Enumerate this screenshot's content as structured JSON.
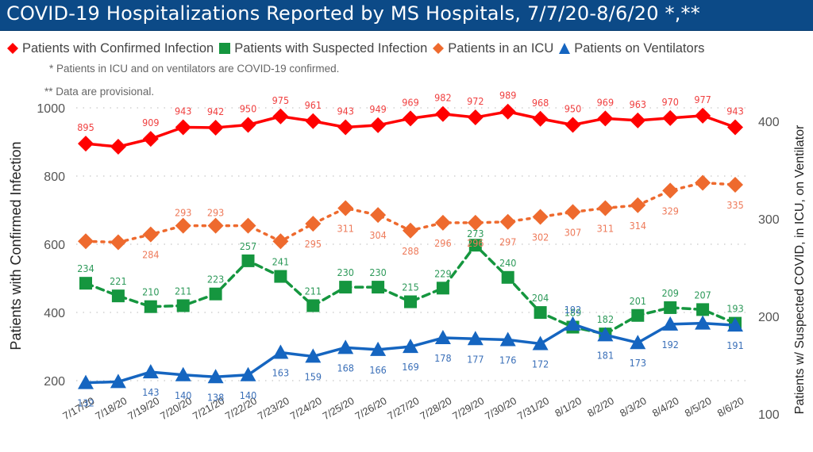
{
  "header": {
    "title": "COVID-19 Hospitalizations Reported by MS Hospitals, 7/7/20-8/6/20 *,**"
  },
  "legend": [
    {
      "label": "Patients with Confirmed Infection",
      "marker": "diamond",
      "color": "#ff0000"
    },
    {
      "label": "Patients with Suspected Infection",
      "marker": "square",
      "color": "#15963f"
    },
    {
      "label": "Patients in an ICU",
      "marker": "diamond",
      "color": "#ee6a2e"
    },
    {
      "label": "Patients on Ventilators",
      "marker": "triangle",
      "color": "#1565c0"
    }
  ],
  "notes": {
    "note1": "* Patients in ICU and on ventilators are COVID-19 confirmed.",
    "note2": "** Data are provisional."
  },
  "chart_data": {
    "type": "line",
    "title": "COVID-19 Hospitalizations Reported by MS Hospitals, 7/7/20-8/6/20 *,**",
    "xlabel": "",
    "ylabel": "Patients with Confirmed Infection",
    "y2label": "Patients w/ Suspected COVID, in ICU, on Ventilator",
    "ylim": [
      150,
      1000
    ],
    "y2lim": [
      100,
      420
    ],
    "yticks": [
      200,
      400,
      600,
      800,
      1000
    ],
    "y2ticks": [
      100,
      200,
      300,
      400
    ],
    "grid": true,
    "legend_position": "top",
    "categories": [
      "7/17/20",
      "7/18/20",
      "7/19/20",
      "7/20/20",
      "7/21/20",
      "7/22/20",
      "7/23/20",
      "7/24/20",
      "7/25/20",
      "7/26/20",
      "7/27/20",
      "7/28/20",
      "7/29/20",
      "7/30/20",
      "7/31/20",
      "8/1/20",
      "8/2/20",
      "8/3/20",
      "8/4/20",
      "8/5/20",
      "8/6/20"
    ],
    "series": [
      {
        "name": "Patients with Confirmed Infection",
        "axis": "left",
        "color": "#ff0000",
        "label_color": "#f04040",
        "marker": "diamond",
        "line": "solid",
        "values": [
          895,
          886,
          909,
          943,
          942,
          950,
          975,
          961,
          943,
          949,
          969,
          982,
          972,
          989,
          968,
          950,
          969,
          963,
          970,
          977,
          943
        ],
        "labels": [
          "895",
          null,
          "909",
          "943",
          "942",
          "950",
          "975",
          "961",
          "943",
          "949",
          "969",
          "982",
          "972",
          "989",
          "968",
          "950",
          "969",
          "963",
          "970",
          "977",
          "943"
        ]
      },
      {
        "name": "Patients with Suspected Infection",
        "axis": "right",
        "color": "#15963f",
        "label_color": "#2e9a5a",
        "marker": "square",
        "line": "dashed",
        "values": [
          234,
          221,
          210,
          211,
          223,
          257,
          241,
          211,
          230,
          230,
          215,
          229,
          273,
          240,
          204,
          189,
          182,
          201,
          209,
          207,
          193
        ],
        "labels": [
          "234",
          "221",
          "210",
          "211",
          "223",
          "257",
          "241",
          "211",
          "230",
          "230",
          "215",
          "229",
          "273",
          "240",
          "204",
          "189",
          "182",
          "201",
          "209",
          "207",
          "193"
        ]
      },
      {
        "name": "Patients in an ICU",
        "axis": "right",
        "color": "#ee6a2e",
        "label_color": "#ee7a5a",
        "marker": "diamond",
        "line": "dotted",
        "values": [
          277,
          276,
          284,
          293,
          293,
          293,
          277,
          295,
          311,
          304,
          288,
          296,
          296,
          297,
          302,
          307,
          311,
          314,
          329,
          337,
          335
        ],
        "labels": [
          null,
          null,
          "284",
          "293",
          "293",
          null,
          null,
          "295",
          "311",
          "304",
          "288",
          "296",
          "296",
          "297",
          "302",
          "307",
          "311",
          "314",
          "329",
          null,
          "335"
        ]
      },
      {
        "name": "Patients on Ventilators",
        "axis": "right",
        "color": "#1565c0",
        "label_color": "#3a6fb8",
        "marker": "triangle",
        "line": "solid",
        "values": [
          132,
          133,
          143,
          140,
          138,
          140,
          163,
          159,
          168,
          166,
          169,
          178,
          177,
          176,
          172,
          192,
          181,
          173,
          192,
          193,
          191
        ],
        "labels": [
          "132",
          null,
          "143",
          "140",
          "138",
          "140",
          "163",
          "159",
          "168",
          "166",
          "169",
          "178",
          "177",
          "176",
          "172",
          "192",
          "181",
          "173",
          "192",
          null,
          "191"
        ]
      }
    ]
  }
}
